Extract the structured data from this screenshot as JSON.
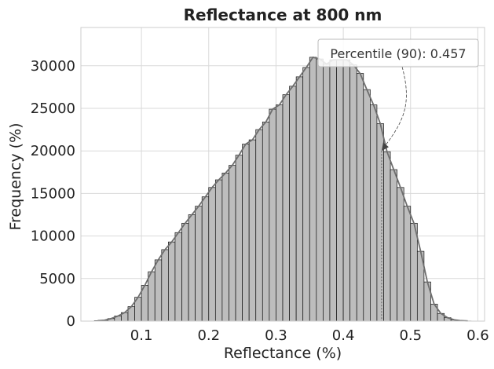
{
  "chart_data": {
    "type": "bar",
    "title": "Reflectance at 800 nm",
    "xlabel": "Reflectance (%)",
    "ylabel": "Frequency (%)",
    "xlim": [
      0.01,
      0.61
    ],
    "ylim": [
      0,
      34500
    ],
    "x_ticks": [
      0.1,
      0.2,
      0.3,
      0.4,
      0.5,
      0.6
    ],
    "x_tick_labels": [
      "0.1",
      "0.2",
      "0.3",
      "0.4",
      "0.5",
      "0.6"
    ],
    "y_ticks": [
      0,
      5000,
      10000,
      15000,
      20000,
      25000,
      30000
    ],
    "y_tick_labels": [
      "0",
      "5000",
      "10000",
      "15000",
      "20000",
      "25000",
      "30000"
    ],
    "grid": true,
    "bin_width": 0.01,
    "bin_starts": [
      0.03,
      0.04,
      0.05,
      0.06,
      0.07,
      0.08,
      0.09,
      0.1,
      0.11,
      0.12,
      0.13,
      0.14,
      0.15,
      0.16,
      0.17,
      0.18,
      0.19,
      0.2,
      0.21,
      0.22,
      0.23,
      0.24,
      0.25,
      0.26,
      0.27,
      0.28,
      0.29,
      0.3,
      0.31,
      0.32,
      0.33,
      0.34,
      0.35,
      0.36,
      0.37,
      0.38,
      0.39,
      0.4,
      0.41,
      0.42,
      0.43,
      0.44,
      0.45,
      0.46,
      0.47,
      0.48,
      0.49,
      0.5,
      0.51,
      0.52,
      0.53,
      0.54,
      0.55,
      0.56,
      0.57,
      0.58
    ],
    "values": [
      50,
      100,
      300,
      600,
      1000,
      1700,
      2800,
      4200,
      5800,
      7200,
      8400,
      9300,
      10400,
      11500,
      12500,
      13500,
      14600,
      15700,
      16600,
      17400,
      18300,
      19500,
      20800,
      21300,
      22500,
      23400,
      24900,
      25400,
      26600,
      27600,
      28700,
      29800,
      31000,
      30800,
      30200,
      30700,
      30700,
      30700,
      30100,
      29100,
      27200,
      25400,
      23200,
      19900,
      17800,
      15700,
      13500,
      11500,
      8200,
      4600,
      2000,
      900,
      400,
      150,
      50,
      20
    ],
    "kde_color": "#6e6e6e",
    "bar_color": "#bdbdbd",
    "annotation": {
      "text": "Percentile (90): 0.457",
      "x": 0.457,
      "y": 20000
    }
  }
}
